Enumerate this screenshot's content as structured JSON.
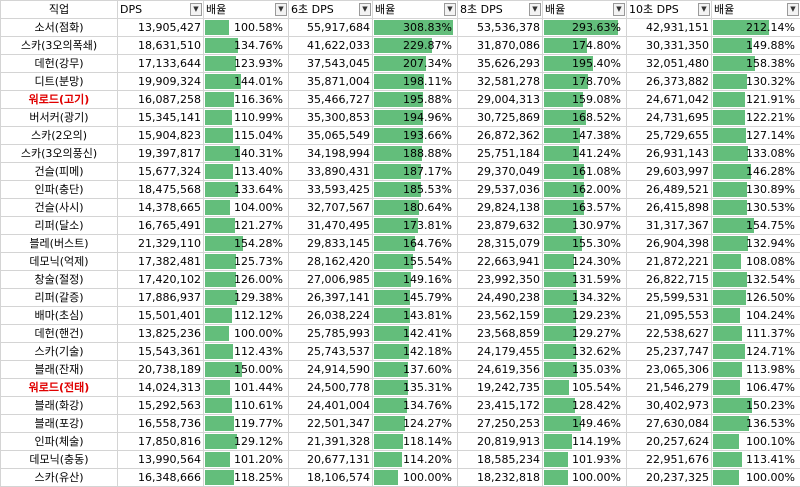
{
  "columns": [
    "직업",
    "DPS",
    "배율",
    "6초 DPS",
    "배율",
    "8초 DPS",
    "배율",
    "10초 DPS",
    "배율"
  ],
  "bar_color": "#63be7b",
  "highlight_color": "#e00000",
  "rows": [
    {
      "name": "소서(점화)",
      "hl": false,
      "dps": "13,905,427",
      "r1": "100.58%",
      "r1v": 100.58,
      "dps6": "55,917,684",
      "r6": "308.83%",
      "r6v": 308.83,
      "dps8": "53,536,378",
      "r8": "293.63%",
      "r8v": 293.63,
      "dps10": "42,931,151",
      "r10": "212.14%",
      "r10v": 212.14
    },
    {
      "name": "스카(3오의폭쇄)",
      "hl": false,
      "dps": "18,631,510",
      "r1": "134.76%",
      "r1v": 134.76,
      "dps6": "41,622,033",
      "r6": "229.87%",
      "r6v": 229.87,
      "dps8": "31,870,086",
      "r8": "174.80%",
      "r8v": 174.8,
      "dps10": "30,331,350",
      "r10": "149.88%",
      "r10v": 149.88
    },
    {
      "name": "데헌(강무)",
      "hl": false,
      "dps": "17,133,644",
      "r1": "123.93%",
      "r1v": 123.93,
      "dps6": "37,543,045",
      "r6": "207.34%",
      "r6v": 207.34,
      "dps8": "35,626,293",
      "r8": "195.40%",
      "r8v": 195.4,
      "dps10": "32,051,480",
      "r10": "158.38%",
      "r10v": 158.38
    },
    {
      "name": "디트(분망)",
      "hl": false,
      "dps": "19,909,324",
      "r1": "144.01%",
      "r1v": 144.01,
      "dps6": "35,871,004",
      "r6": "198.11%",
      "r6v": 198.11,
      "dps8": "32,581,278",
      "r8": "178.70%",
      "r8v": 178.7,
      "dps10": "26,373,882",
      "r10": "130.32%",
      "r10v": 130.32
    },
    {
      "name": "워로드(고기)",
      "hl": true,
      "dps": "16,087,258",
      "r1": "116.36%",
      "r1v": 116.36,
      "dps6": "35,466,727",
      "r6": "195.88%",
      "r6v": 195.88,
      "dps8": "29,004,313",
      "r8": "159.08%",
      "r8v": 159.08,
      "dps10": "24,671,042",
      "r10": "121.91%",
      "r10v": 121.91
    },
    {
      "name": "버서커(광기)",
      "hl": false,
      "dps": "15,345,141",
      "r1": "110.99%",
      "r1v": 110.99,
      "dps6": "35,300,853",
      "r6": "194.96%",
      "r6v": 194.96,
      "dps8": "30,725,869",
      "r8": "168.52%",
      "r8v": 168.52,
      "dps10": "24,731,695",
      "r10": "122.21%",
      "r10v": 122.21
    },
    {
      "name": "스카(2오의)",
      "hl": false,
      "dps": "15,904,823",
      "r1": "115.04%",
      "r1v": 115.04,
      "dps6": "35,065,549",
      "r6": "193.66%",
      "r6v": 193.66,
      "dps8": "26,872,362",
      "r8": "147.38%",
      "r8v": 147.38,
      "dps10": "25,729,655",
      "r10": "127.14%",
      "r10v": 127.14
    },
    {
      "name": "스카(3오의풍신)",
      "hl": false,
      "dps": "19,397,817",
      "r1": "140.31%",
      "r1v": 140.31,
      "dps6": "34,198,994",
      "r6": "188.88%",
      "r6v": 188.88,
      "dps8": "25,751,184",
      "r8": "141.24%",
      "r8v": 141.24,
      "dps10": "26,931,143",
      "r10": "133.08%",
      "r10v": 133.08
    },
    {
      "name": "건슬(피메)",
      "hl": false,
      "dps": "15,677,324",
      "r1": "113.40%",
      "r1v": 113.4,
      "dps6": "33,890,431",
      "r6": "187.17%",
      "r6v": 187.17,
      "dps8": "29,370,049",
      "r8": "161.08%",
      "r8v": 161.08,
      "dps10": "29,603,997",
      "r10": "146.28%",
      "r10v": 146.28
    },
    {
      "name": "인파(충단)",
      "hl": false,
      "dps": "18,475,568",
      "r1": "133.64%",
      "r1v": 133.64,
      "dps6": "33,593,425",
      "r6": "185.53%",
      "r6v": 185.53,
      "dps8": "29,537,036",
      "r8": "162.00%",
      "r8v": 162.0,
      "dps10": "26,489,521",
      "r10": "130.89%",
      "r10v": 130.89
    },
    {
      "name": "건슬(사시)",
      "hl": false,
      "dps": "14,378,665",
      "r1": "104.00%",
      "r1v": 104.0,
      "dps6": "32,707,567",
      "r6": "180.64%",
      "r6v": 180.64,
      "dps8": "29,824,138",
      "r8": "163.57%",
      "r8v": 163.57,
      "dps10": "26,415,898",
      "r10": "130.53%",
      "r10v": 130.53
    },
    {
      "name": "리퍼(달소)",
      "hl": false,
      "dps": "16,765,491",
      "r1": "121.27%",
      "r1v": 121.27,
      "dps6": "31,470,495",
      "r6": "173.81%",
      "r6v": 173.81,
      "dps8": "23,879,632",
      "r8": "130.97%",
      "r8v": 130.97,
      "dps10": "31,317,367",
      "r10": "154.75%",
      "r10v": 154.75
    },
    {
      "name": "블레(버스트)",
      "hl": false,
      "dps": "21,329,110",
      "r1": "154.28%",
      "r1v": 154.28,
      "dps6": "29,833,145",
      "r6": "164.76%",
      "r6v": 164.76,
      "dps8": "28,315,079",
      "r8": "155.30%",
      "r8v": 155.3,
      "dps10": "26,904,398",
      "r10": "132.94%",
      "r10v": 132.94
    },
    {
      "name": "데모닉(억제)",
      "hl": false,
      "dps": "17,382,481",
      "r1": "125.73%",
      "r1v": 125.73,
      "dps6": "28,162,420",
      "r6": "155.54%",
      "r6v": 155.54,
      "dps8": "22,663,941",
      "r8": "124.30%",
      "r8v": 124.3,
      "dps10": "21,872,221",
      "r10": "108.08%",
      "r10v": 108.08
    },
    {
      "name": "창술(절정)",
      "hl": false,
      "dps": "17,420,102",
      "r1": "126.00%",
      "r1v": 126.0,
      "dps6": "27,006,985",
      "r6": "149.16%",
      "r6v": 149.16,
      "dps8": "23,992,350",
      "r8": "131.59%",
      "r8v": 131.59,
      "dps10": "26,822,715",
      "r10": "132.54%",
      "r10v": 132.54
    },
    {
      "name": "리퍼(갈증)",
      "hl": false,
      "dps": "17,886,937",
      "r1": "129.38%",
      "r1v": 129.38,
      "dps6": "26,397,141",
      "r6": "145.79%",
      "r6v": 145.79,
      "dps8": "24,490,238",
      "r8": "134.32%",
      "r8v": 134.32,
      "dps10": "25,599,531",
      "r10": "126.50%",
      "r10v": 126.5
    },
    {
      "name": "배마(초심)",
      "hl": false,
      "dps": "15,501,401",
      "r1": "112.12%",
      "r1v": 112.12,
      "dps6": "26,038,224",
      "r6": "143.81%",
      "r6v": 143.81,
      "dps8": "23,562,159",
      "r8": "129.23%",
      "r8v": 129.23,
      "dps10": "21,095,553",
      "r10": "104.24%",
      "r10v": 104.24
    },
    {
      "name": "데헌(핸건)",
      "hl": false,
      "dps": "13,825,236",
      "r1": "100.00%",
      "r1v": 100.0,
      "dps6": "25,785,993",
      "r6": "142.41%",
      "r6v": 142.41,
      "dps8": "23,568,859",
      "r8": "129.27%",
      "r8v": 129.27,
      "dps10": "22,538,627",
      "r10": "111.37%",
      "r10v": 111.37
    },
    {
      "name": "스카(기술)",
      "hl": false,
      "dps": "15,543,361",
      "r1": "112.43%",
      "r1v": 112.43,
      "dps6": "25,743,537",
      "r6": "142.18%",
      "r6v": 142.18,
      "dps8": "24,179,455",
      "r8": "132.62%",
      "r8v": 132.62,
      "dps10": "25,237,747",
      "r10": "124.71%",
      "r10v": 124.71
    },
    {
      "name": "블래(잔재)",
      "hl": false,
      "dps": "20,738,189",
      "r1": "150.00%",
      "r1v": 150.0,
      "dps6": "24,914,590",
      "r6": "137.60%",
      "r6v": 137.6,
      "dps8": "24,619,356",
      "r8": "135.03%",
      "r8v": 135.03,
      "dps10": "23,065,306",
      "r10": "113.98%",
      "r10v": 113.98
    },
    {
      "name": "워로드(전태)",
      "hl": true,
      "dps": "14,024,313",
      "r1": "101.44%",
      "r1v": 101.44,
      "dps6": "24,500,778",
      "r6": "135.31%",
      "r6v": 135.31,
      "dps8": "19,242,735",
      "r8": "105.54%",
      "r8v": 105.54,
      "dps10": "21,546,279",
      "r10": "106.47%",
      "r10v": 106.47
    },
    {
      "name": "블래(화강)",
      "hl": false,
      "dps": "15,292,563",
      "r1": "110.61%",
      "r1v": 110.61,
      "dps6": "24,401,004",
      "r6": "134.76%",
      "r6v": 134.76,
      "dps8": "23,415,172",
      "r8": "128.42%",
      "r8v": 128.42,
      "dps10": "30,402,973",
      "r10": "150.23%",
      "r10v": 150.23
    },
    {
      "name": "블래(포강)",
      "hl": false,
      "dps": "16,558,736",
      "r1": "119.77%",
      "r1v": 119.77,
      "dps6": "22,501,347",
      "r6": "124.27%",
      "r6v": 124.27,
      "dps8": "27,250,253",
      "r8": "149.46%",
      "r8v": 149.46,
      "dps10": "27,630,084",
      "r10": "136.53%",
      "r10v": 136.53
    },
    {
      "name": "인파(체술)",
      "hl": false,
      "dps": "17,850,816",
      "r1": "129.12%",
      "r1v": 129.12,
      "dps6": "21,391,328",
      "r6": "118.14%",
      "r6v": 118.14,
      "dps8": "20,819,913",
      "r8": "114.19%",
      "r8v": 114.19,
      "dps10": "20,257,624",
      "r10": "100.10%",
      "r10v": 100.1
    },
    {
      "name": "데모닉(충동)",
      "hl": false,
      "dps": "13,990,564",
      "r1": "101.20%",
      "r1v": 101.2,
      "dps6": "20,677,131",
      "r6": "114.20%",
      "r6v": 114.2,
      "dps8": "18,585,234",
      "r8": "101.93%",
      "r8v": 101.93,
      "dps10": "22,951,676",
      "r10": "113.41%",
      "r10v": 113.41
    },
    {
      "name": "스카(유산)",
      "hl": false,
      "dps": "16,348,666",
      "r1": "118.25%",
      "r1v": 118.25,
      "dps6": "18,106,574",
      "r6": "100.00%",
      "r6v": 100.0,
      "dps8": "18,232,818",
      "r8": "100.00%",
      "r8v": 100.0,
      "dps10": "20,237,325",
      "r10": "100.00%",
      "r10v": 100.0
    }
  ]
}
